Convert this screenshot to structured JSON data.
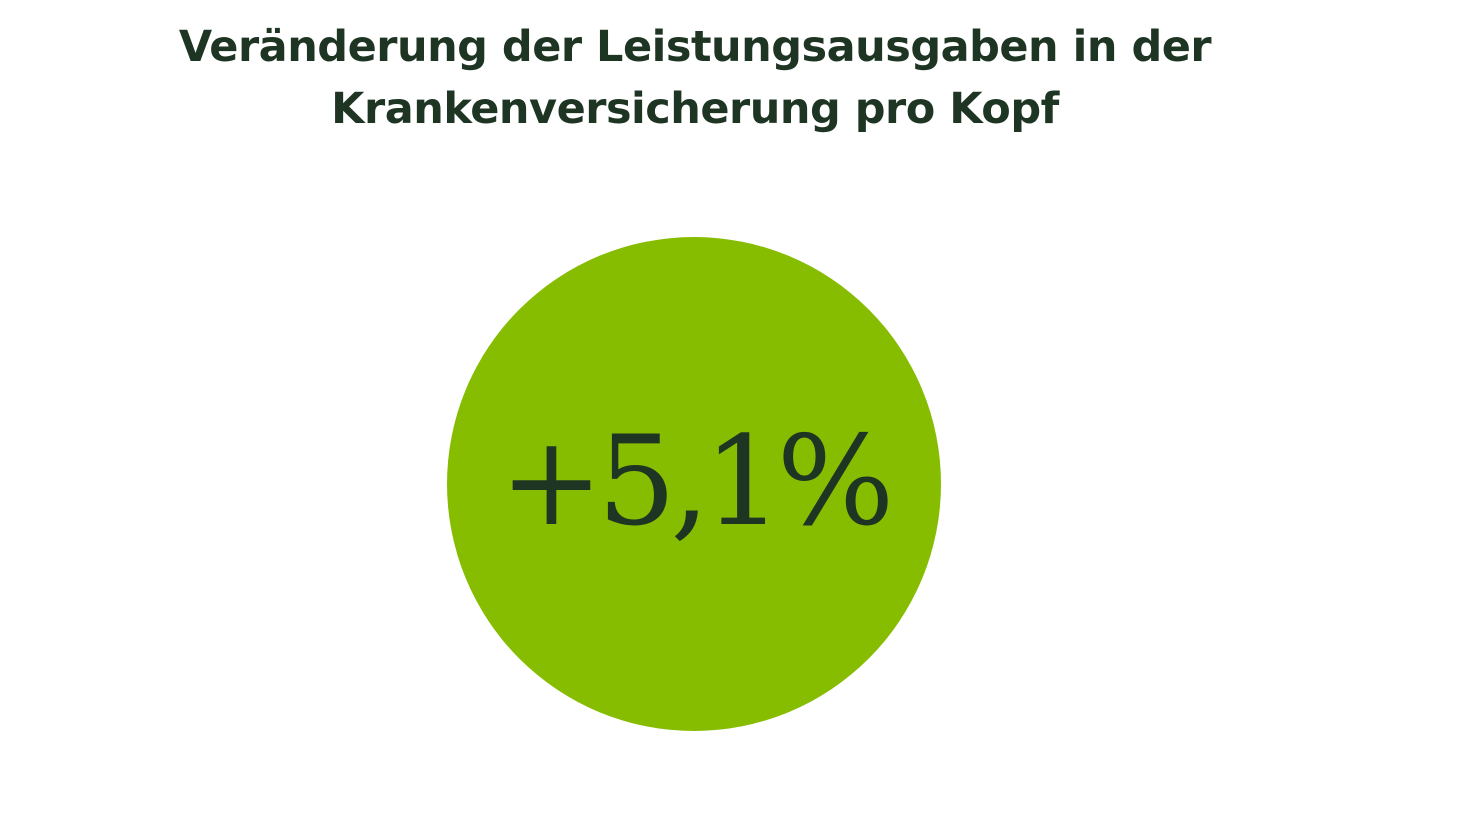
{
  "title": {
    "line1": "Veränderung der Leistungsausgaben in der",
    "line2": "Krankenversicherung pro Kopf"
  },
  "highlight": {
    "value": "+5,1%",
    "circle_color": "#86bd00",
    "text_color": "#1f3524"
  }
}
